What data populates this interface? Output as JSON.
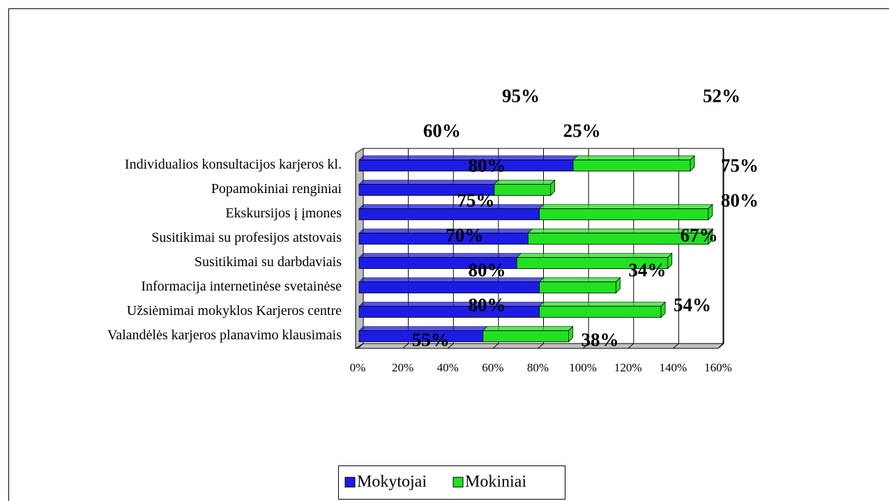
{
  "chart_data": {
    "type": "bar",
    "orientation": "horizontal",
    "stacked": true,
    "categories": [
      "Individualios konsultacijos karjeros kl.",
      "Popamokiniai renginiai",
      "Ekskursijos į įmones",
      "Susitikimai su profesijos atstovais",
      "Susitikimai su darbdaviais",
      "Informacija internetinėse svetainėse",
      "Užsiėmimai mokyklos Karjeros centre",
      "Valandėlės karjeros planavimo klausimais"
    ],
    "series": [
      {
        "name": "Mokytojai",
        "color": "#1c1ce6",
        "values": [
          95,
          60,
          80,
          75,
          70,
          80,
          80,
          55
        ],
        "value_labels": [
          "95%",
          "60%",
          "80%",
          "75%",
          "70%",
          "80%",
          "80%",
          "55%"
        ]
      },
      {
        "name": "Mokiniai",
        "color": "#22e022",
        "values": [
          52,
          25,
          75,
          80,
          67,
          34,
          54,
          38
        ],
        "value_labels": [
          "52%",
          "25%",
          "75%",
          "80%",
          "67%",
          "34%",
          "54%",
          "38%"
        ]
      }
    ],
    "xlim": [
      0,
      160
    ],
    "xticks": [
      {
        "value": 0,
        "label": "0%"
      },
      {
        "value": 20,
        "label": "20%"
      },
      {
        "value": 40,
        "label": "40%"
      },
      {
        "value": 60,
        "label": "60%"
      },
      {
        "value": 80,
        "label": "80%"
      },
      {
        "value": 100,
        "label": "100%"
      },
      {
        "value": 120,
        "label": "120%"
      },
      {
        "value": 140,
        "label": "140%"
      },
      {
        "value": 160,
        "label": "160%"
      }
    ],
    "grid": true,
    "legend": "bottom"
  }
}
